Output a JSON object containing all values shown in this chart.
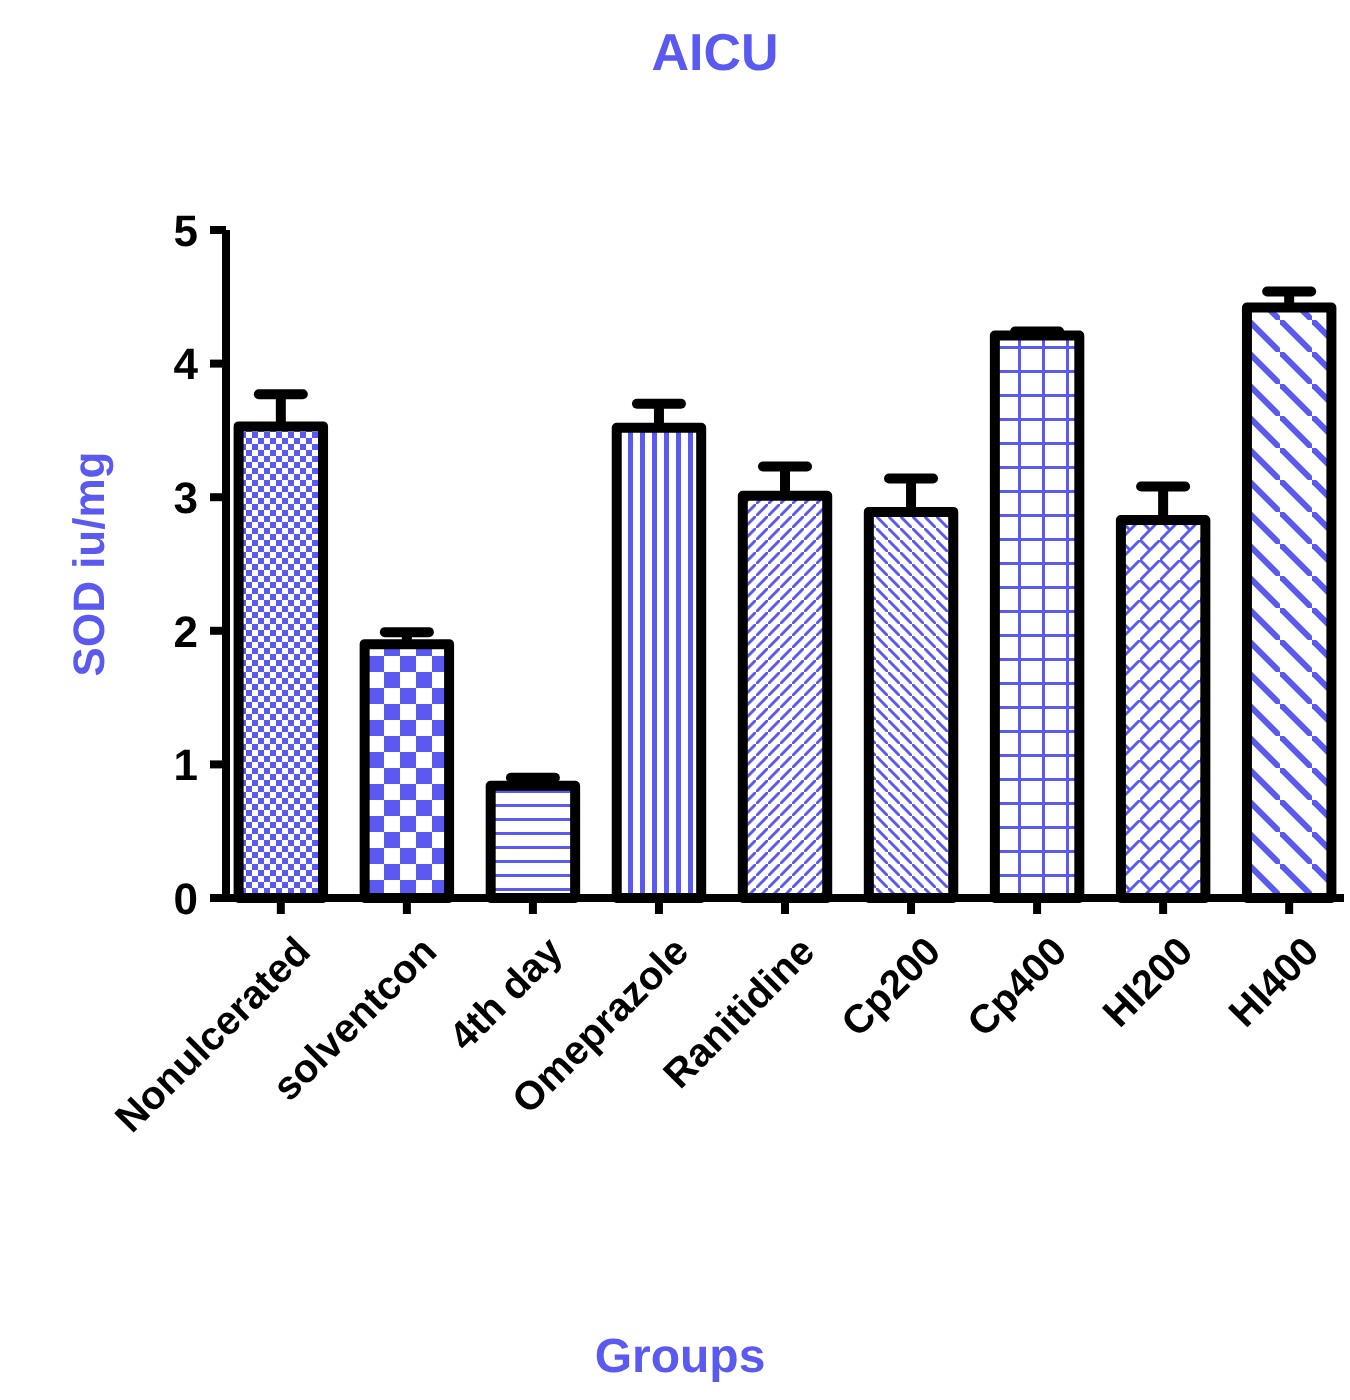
{
  "chart_data": {
    "type": "bar",
    "title": "AICU",
    "xlabel": "Groups",
    "ylabel": "SOD iu/mg",
    "categories": [
      "Nonulcerated",
      "solventcon",
      "4th day",
      "Omeprazole",
      "Ranitidine",
      "Cp200",
      "Cp400",
      "HI200",
      "HI400"
    ],
    "values": [
      3.53,
      1.9,
      0.84,
      3.52,
      3.01,
      2.89,
      4.21,
      2.83,
      4.42
    ],
    "errors": [
      0.24,
      0.09,
      0.06,
      0.18,
      0.22,
      0.25,
      0.03,
      0.25,
      0.12
    ],
    "color": "#5a5af0",
    "ylim": [
      0,
      5
    ],
    "yticks": [
      0,
      1,
      2,
      3,
      4,
      5
    ],
    "grid": false
  }
}
